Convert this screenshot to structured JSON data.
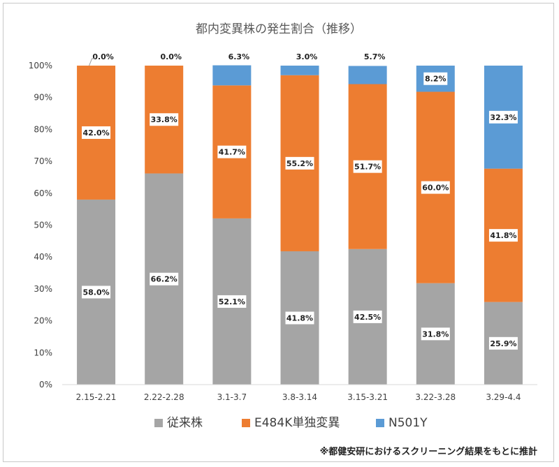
{
  "chart_data": {
    "type": "bar",
    "stacked": true,
    "title": "都内変異株の発生割合（推移）",
    "categories": [
      "2.15-2.21",
      "2.22-2.28",
      "3.1-3.7",
      "3.8-3.14",
      "3.15-3.21",
      "3.22-3.28",
      "3.29-4.4"
    ],
    "series": [
      {
        "name": "従来株",
        "color": "#a5a5a5",
        "values": [
          58.0,
          66.2,
          52.1,
          41.8,
          42.5,
          31.8,
          25.9
        ],
        "labels": [
          "58.0%",
          "66.2%",
          "52.1%",
          "41.8%",
          "42.5%",
          "31.8%",
          "25.9%"
        ]
      },
      {
        "name": "E484K単独変異",
        "color": "#ed7d31",
        "values": [
          42.0,
          33.8,
          41.7,
          55.2,
          51.7,
          60.0,
          41.8
        ],
        "labels": [
          "42.0%",
          "33.8%",
          "41.7%",
          "55.2%",
          "51.7%",
          "60.0%",
          "41.8%"
        ]
      },
      {
        "name": "N501Y",
        "color": "#5b9bd5",
        "values": [
          0.0,
          0.0,
          6.3,
          3.0,
          5.7,
          8.2,
          32.3
        ],
        "labels": [
          "0.0%",
          "0.0%",
          "6.3%",
          "3.0%",
          "5.7%",
          "8.2%",
          "32.3%"
        ]
      }
    ],
    "yticks": [
      "0%",
      "10%",
      "20%",
      "30%",
      "40%",
      "50%",
      "60%",
      "70%",
      "80%",
      "90%",
      "100%"
    ],
    "ylim": [
      0,
      100
    ],
    "grid": false,
    "legend": "bottom",
    "footnote": "※都健安研におけるスクリーニング結果をもとに推計"
  }
}
